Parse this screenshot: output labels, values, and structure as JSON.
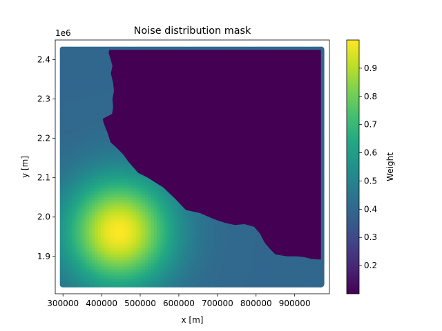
{
  "chart_data": {
    "type": "heatmap",
    "title": "Noise distribution mask",
    "xlabel": "x [m]",
    "ylabel": "y [m]",
    "y_offset_label": "1e6",
    "colorbar_label": "Weight",
    "colormap": "viridis",
    "xlim": [
      280000,
      990000
    ],
    "ylim": [
      1805000,
      2450000
    ],
    "clim": [
      0.1,
      1.0
    ],
    "x_ticks": [
      300000,
      400000,
      500000,
      600000,
      700000,
      800000,
      900000
    ],
    "x_tick_labels": [
      "300000",
      "400000",
      "500000",
      "600000",
      "700000",
      "800000",
      "900000"
    ],
    "y_ticks": [
      1900000,
      2000000,
      2100000,
      2200000,
      2300000,
      2400000
    ],
    "y_tick_labels": [
      "1.9",
      "2.0",
      "2.1",
      "2.2",
      "2.3",
      "2.4"
    ],
    "colorbar_ticks": [
      0.2,
      0.3,
      0.4,
      0.5,
      0.6,
      0.7,
      0.8,
      0.9
    ],
    "colorbar_tick_labels": [
      "0.2",
      "0.3",
      "0.4",
      "0.5",
      "0.6",
      "0.7",
      "0.8",
      "0.9"
    ],
    "data_extent": {
      "x": [
        300000,
        968000
      ],
      "y": [
        1830000,
        2425000
      ]
    },
    "background_weight": 0.4,
    "masked_weight": 0.1,
    "hotspot": {
      "x": 445000,
      "y": 1963000,
      "peak_weight": 1.0,
      "sigma_m": 95000
    },
    "mask_boundary": [
      [
        420000,
        2425000
      ],
      [
        418000,
        2418000
      ],
      [
        423000,
        2402000
      ],
      [
        428000,
        2384000
      ],
      [
        424000,
        2365000
      ],
      [
        430000,
        2340000
      ],
      [
        432000,
        2320000
      ],
      [
        428000,
        2300000
      ],
      [
        430000,
        2280000
      ],
      [
        427000,
        2262000
      ],
      [
        403000,
        2250000
      ],
      [
        405000,
        2240000
      ],
      [
        408000,
        2232000
      ],
      [
        415000,
        2215000
      ],
      [
        423000,
        2190000
      ],
      [
        440000,
        2175000
      ],
      [
        455000,
        2160000
      ],
      [
        470000,
        2140000
      ],
      [
        495000,
        2112000
      ],
      [
        520000,
        2100000
      ],
      [
        560000,
        2075000
      ],
      [
        592000,
        2045000
      ],
      [
        618000,
        2018000
      ],
      [
        655000,
        2010000
      ],
      [
        690000,
        1995000
      ],
      [
        720000,
        1985000
      ],
      [
        745000,
        1980000
      ],
      [
        770000,
        1982000
      ],
      [
        795000,
        1975000
      ],
      [
        810000,
        1958000
      ],
      [
        822000,
        1935000
      ],
      [
        835000,
        1920000
      ],
      [
        850000,
        1905000
      ],
      [
        880000,
        1900000
      ],
      [
        905000,
        1900000
      ],
      [
        925000,
        1898000
      ],
      [
        945000,
        1893000
      ],
      [
        968000,
        1892000
      ],
      [
        968000,
        2425000
      ]
    ]
  }
}
